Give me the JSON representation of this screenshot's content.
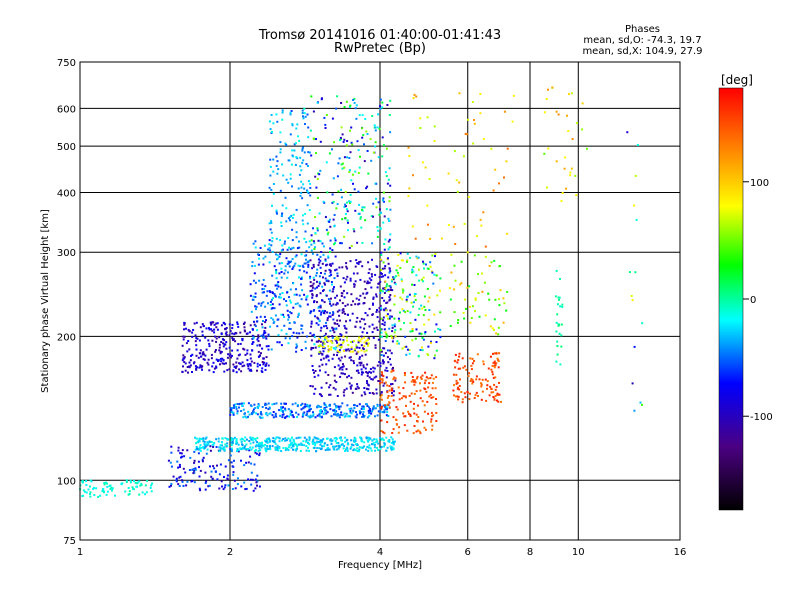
{
  "chart_data": {
    "type": "scatter",
    "title": "Tromsø 20141016 01:40:00-01:41:43",
    "subtitle": "RwPretec (Bp)",
    "xlabel": "Frequency [MHz]",
    "ylabel": "Stationary phase Virtual Height [km]",
    "x_scale": "log",
    "y_scale": "log",
    "xlim": [
      1,
      16
    ],
    "ylim": [
      75,
      750
    ],
    "x_ticks": [
      "1",
      "2",
      "4",
      "6",
      "8",
      "10",
      "16"
    ],
    "y_ticks": [
      "75",
      "100",
      "200",
      "300",
      "400",
      "500",
      "600",
      "750"
    ],
    "grid": true,
    "info": {
      "heading": "Phases",
      "line1": "mean, sd,O: -74.3, 19.7",
      "line2": "mean, sd,X: 104.9, 27.9"
    },
    "colorbar": {
      "label": "[deg]",
      "ticks": [
        "100",
        "0",
        "-100"
      ],
      "range": [
        -180,
        180
      ]
    },
    "clusters": [
      {
        "x": [
          1.0,
          1.4
        ],
        "y": [
          92,
          100
        ],
        "phase": [
          -20,
          0
        ],
        "n": 80
      },
      {
        "x": [
          1.5,
          2.3
        ],
        "y": [
          95,
          118
        ],
        "phase": [
          -110,
          -40
        ],
        "n": 150
      },
      {
        "x": [
          1.6,
          2.4
        ],
        "y": [
          168,
          215
        ],
        "phase": [
          -120,
          -70
        ],
        "n": 300
      },
      {
        "x": [
          2.2,
          3.3
        ],
        "y": [
          185,
          320
        ],
        "phase": [
          -80,
          -20
        ],
        "n": 300
      },
      {
        "x": [
          2.4,
          2.9
        ],
        "y": [
          230,
          600
        ],
        "phase": [
          -60,
          -10
        ],
        "n": 200
      },
      {
        "x": [
          1.7,
          4.3
        ],
        "y": [
          115,
          123
        ],
        "phase": [
          -40,
          -10
        ],
        "n": 450
      },
      {
        "x": [
          2.0,
          4.2
        ],
        "y": [
          135,
          145
        ],
        "phase": [
          -70,
          -20
        ],
        "n": 300
      },
      {
        "x": [
          2.9,
          4.3
        ],
        "y": [
          150,
          290
        ],
        "phase": [
          -120,
          -80
        ],
        "n": 500
      },
      {
        "x": [
          2.9,
          4.2
        ],
        "y": [
          300,
          640
        ],
        "phase": [
          -110,
          60
        ],
        "n": 250
      },
      {
        "x": [
          3.0,
          3.8
        ],
        "y": [
          185,
          200
        ],
        "phase": [
          60,
          90
        ],
        "n": 60
      },
      {
        "x": [
          4.0,
          5.2
        ],
        "y": [
          125,
          170
        ],
        "phase": [
          130,
          170
        ],
        "n": 150
      },
      {
        "x": [
          4.0,
          5.3
        ],
        "y": [
          180,
          300
        ],
        "phase": [
          -90,
          100
        ],
        "n": 200
      },
      {
        "x": [
          5.6,
          7.0
        ],
        "y": [
          145,
          185
        ],
        "phase": [
          130,
          170
        ],
        "n": 120
      },
      {
        "x": [
          5.5,
          7.2
        ],
        "y": [
          200,
          300
        ],
        "phase": [
          20,
          120
        ],
        "n": 60
      },
      {
        "x": [
          4.5,
          7.5
        ],
        "y": [
          300,
          650
        ],
        "phase": [
          60,
          140
        ],
        "n": 60
      },
      {
        "x": [
          8.5,
          10.5
        ],
        "y": [
          380,
          680
        ],
        "phase": [
          40,
          130
        ],
        "n": 30
      },
      {
        "x": [
          9.0,
          9.3
        ],
        "y": [
          170,
          280
        ],
        "phase": [
          -10,
          10
        ],
        "n": 25
      },
      {
        "x": [
          12.5,
          13.5
        ],
        "y": [
          120,
          560
        ],
        "phase": [
          -120,
          120
        ],
        "n": 15
      }
    ]
  }
}
